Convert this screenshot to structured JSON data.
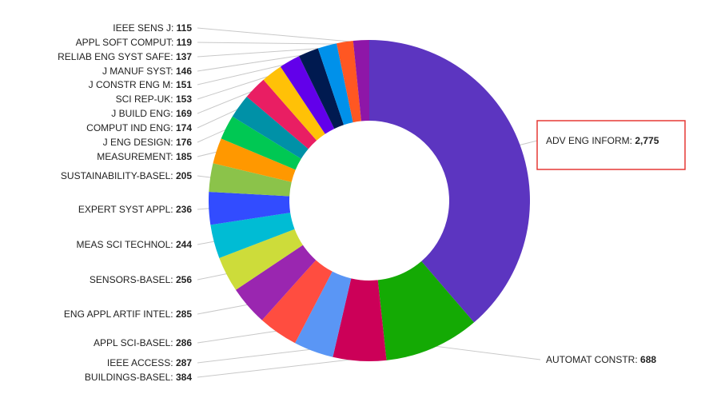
{
  "chart_data": {
    "type": "pie",
    "variant": "donut",
    "highlighted": "ADV ENG INFORM",
    "slices": [
      {
        "label": "ADV ENG INFORM",
        "value": 2775,
        "display": "2,775",
        "color": "#5c35c0"
      },
      {
        "label": "AUTOMAT CONSTR",
        "value": 688,
        "display": "688",
        "color": "#14aa04"
      },
      {
        "label": "BUILDINGS-BASEL",
        "value": 384,
        "display": "384",
        "color": "#cc0058"
      },
      {
        "label": "IEEE ACCESS",
        "value": 287,
        "display": "287",
        "color": "#5a96f5"
      },
      {
        "label": "APPL SCI-BASEL",
        "value": 286,
        "display": "286",
        "color": "#ff4d40"
      },
      {
        "label": "ENG APPL ARTIF INTEL",
        "value": 285,
        "display": "285",
        "color": "#9a26b0"
      },
      {
        "label": "SENSORS-BASEL",
        "value": 256,
        "display": "256",
        "color": "#cddc3a"
      },
      {
        "label": "MEAS SCI TECHNOL",
        "value": 244,
        "display": "244",
        "color": "#00bcd4"
      },
      {
        "label": "EXPERT SYST APPL",
        "value": 236,
        "display": "236",
        "color": "#324cff"
      },
      {
        "label": "SUSTAINABILITY-BASEL",
        "value": 205,
        "display": "205",
        "color": "#8bc34a"
      },
      {
        "label": "MEASUREMENT",
        "value": 185,
        "display": "185",
        "color": "#ff9800"
      },
      {
        "label": "J ENG DESIGN",
        "value": 176,
        "display": "176",
        "color": "#00c853"
      },
      {
        "label": "COMPUT IND ENG",
        "value": 174,
        "display": "174",
        "color": "#0091a7"
      },
      {
        "label": "J BUILD ENG",
        "value": 169,
        "display": "169",
        "color": "#e91e63"
      },
      {
        "label": "SCI REP-UK",
        "value": 153,
        "display": "153",
        "color": "#ffc107"
      },
      {
        "label": "J CONSTR ENG M",
        "value": 151,
        "display": "151",
        "color": "#6200ea"
      },
      {
        "label": "J MANUF SYST",
        "value": 146,
        "display": "146",
        "color": "#001a50"
      },
      {
        "label": "RELIAB ENG SYST SAFE",
        "value": 137,
        "display": "137",
        "color": "#0091ea"
      },
      {
        "label": "APPL SOFT COMPUT",
        "value": 119,
        "display": "119",
        "color": "#ff5722"
      },
      {
        "label": "IEEE SENS J",
        "value": 115,
        "display": "115",
        "color": "#8e16a8"
      }
    ]
  }
}
